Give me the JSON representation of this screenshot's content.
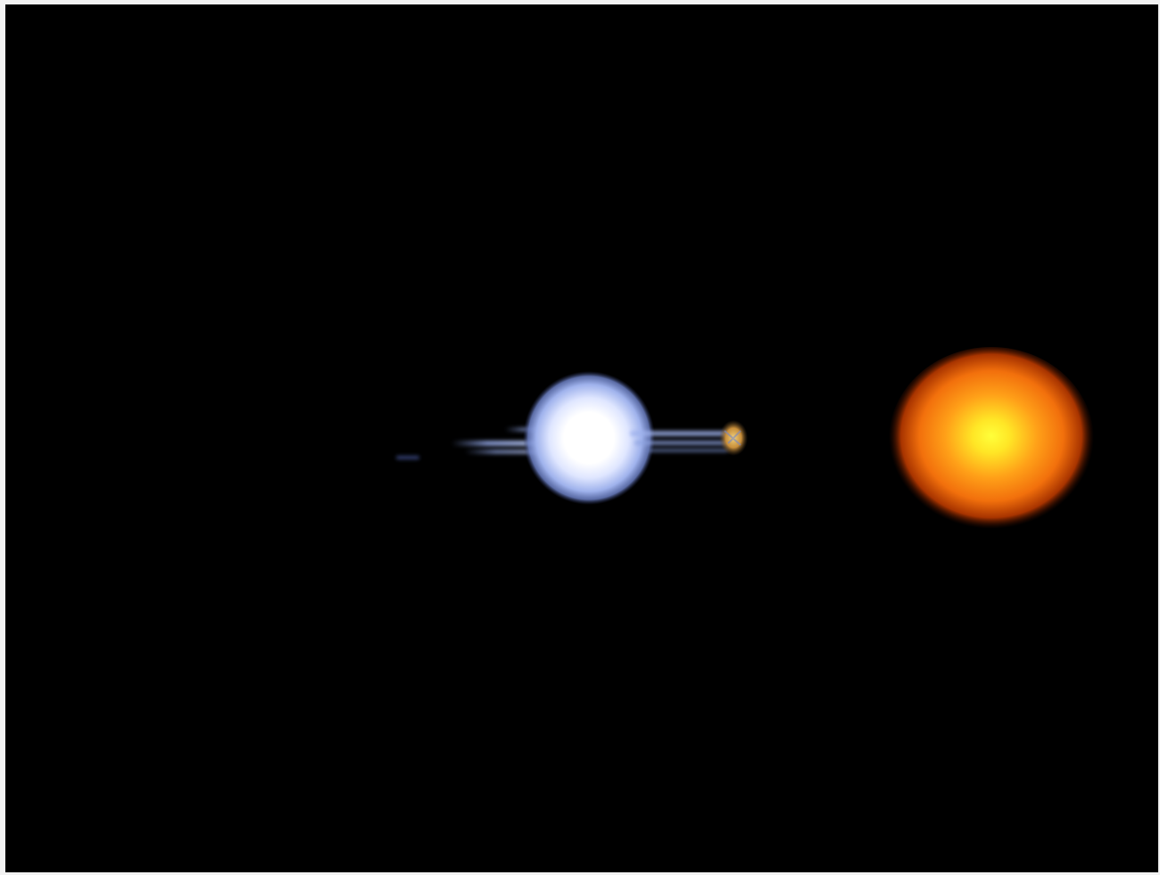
{
  "scene": {
    "background_color": "#000000",
    "frame_color": "#f2f2f2",
    "blue_star": {
      "icon": "blue-white-star",
      "core_color": "#ffffff",
      "halo_color": "#8fa3e0"
    },
    "companion": {
      "icon": "small-orange-companion",
      "color": "#d8a44c"
    },
    "mass_stream": {
      "icon": "blue-gas-stream",
      "color": "#7e94d6"
    },
    "red_giant": {
      "icon": "red-giant-star",
      "core_color": "#ffff2e",
      "mid_color": "#ff8a14",
      "edge_color": "#b83a00"
    }
  }
}
